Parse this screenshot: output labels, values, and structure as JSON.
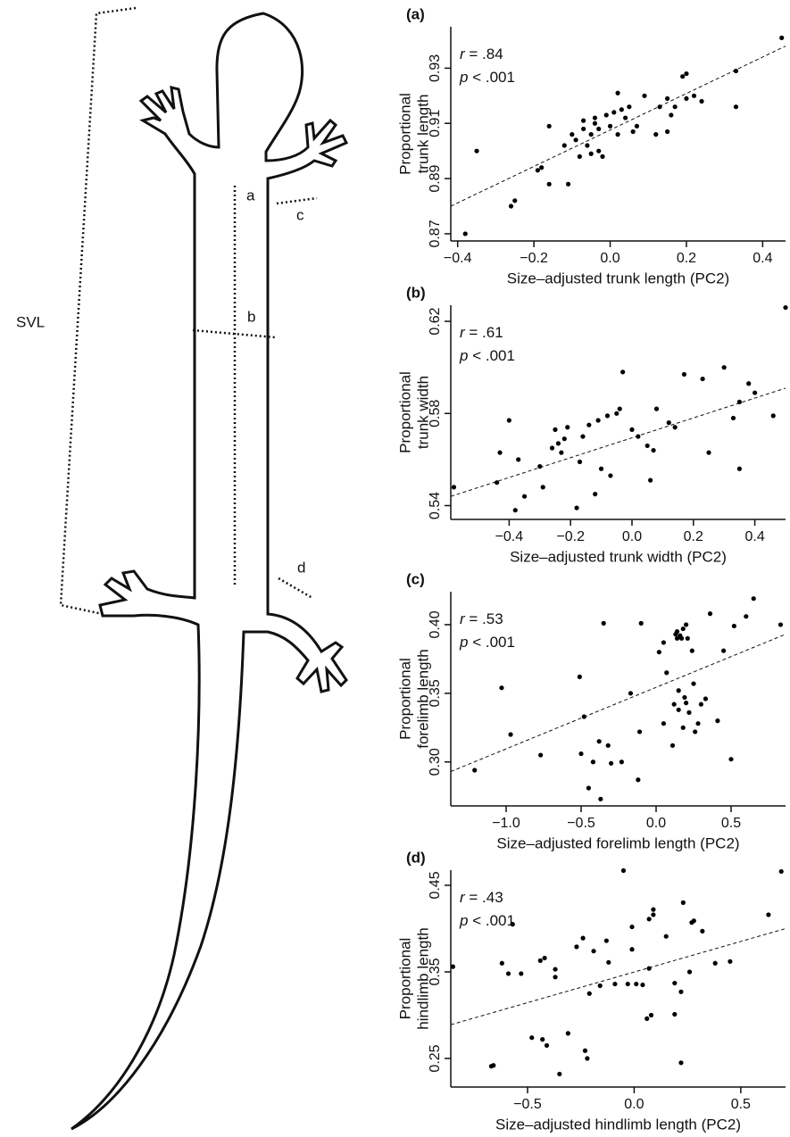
{
  "diagram": {
    "labels": {
      "svl": "SVL",
      "a": "a",
      "b": "b",
      "c": "c",
      "d": "d"
    }
  },
  "chart_data": [
    {
      "type": "scatter",
      "panel": "(a)",
      "annotations": [
        "r = .84",
        "p < .001"
      ],
      "x_label": "Size–adjusted trunk length (PC2)",
      "y_label": [
        "Proportional",
        "trunk length"
      ],
      "color": "#000000",
      "xlim": [
        -0.418,
        0.46
      ],
      "ylim": [
        0.8674,
        0.945
      ],
      "xticks": [
        {
          "value": -0.4,
          "label": "−0.4"
        },
        {
          "value": -0.2,
          "label": "−0.2"
        },
        {
          "value": 0,
          "label": "0.0"
        },
        0.2,
        0.4
      ],
      "yticks": [
        0.87,
        0.89,
        0.91,
        0.93
      ],
      "x": [
        -0.38,
        -0.35,
        -0.26,
        -0.25,
        -0.19,
        -0.18,
        -0.16,
        -0.16,
        -0.12,
        -0.11,
        -0.1,
        -0.09,
        -0.08,
        -0.07,
        -0.07,
        -0.06,
        -0.05,
        -0.05,
        -0.04,
        -0.04,
        -0.03,
        -0.03,
        -0.02,
        -0.01,
        0.0,
        0.01,
        0.02,
        0.02,
        0.03,
        0.04,
        0.05,
        0.06,
        0.07,
        0.09,
        0.13,
        0.15,
        0.15,
        0.16,
        0.17,
        0.19,
        0.2,
        0.2,
        0.22,
        0.24,
        0.33,
        0.33,
        0.45,
        0.12
      ],
      "values": [
        0.87,
        0.9,
        0.88,
        0.882,
        0.893,
        0.894,
        0.888,
        0.909,
        0.902,
        0.888,
        0.906,
        0.904,
        0.898,
        0.911,
        0.908,
        0.902,
        0.906,
        0.899,
        0.91,
        0.912,
        0.908,
        0.9,
        0.898,
        0.913,
        0.909,
        0.914,
        0.921,
        0.906,
        0.915,
        0.912,
        0.916,
        0.907,
        0.909,
        0.92,
        0.916,
        0.919,
        0.907,
        0.913,
        0.916,
        0.927,
        0.928,
        0.919,
        0.92,
        0.918,
        0.929,
        0.916,
        0.941,
        0.906
      ],
      "trend_line": {
        "x": [
          -0.418,
          0.46
        ],
        "values": [
          0.88,
          0.938
        ]
      }
    },
    {
      "type": "scatter",
      "panel": "(b)",
      "annotations": [
        "r = .61",
        "p < .001"
      ],
      "x_label": "Size–adjusted trunk width (PC2)",
      "y_label": [
        "Proportional",
        "trunk width"
      ],
      "color": "#000000",
      "xlim": [
        -0.59,
        0.5
      ],
      "ylim": [
        0.534,
        0.627
      ],
      "xticks": [
        {
          "value": -0.4,
          "label": "−0.4"
        },
        {
          "value": -0.2,
          "label": "−0.2"
        },
        {
          "value": 0,
          "label": "0.0"
        },
        0.2,
        0.4
      ],
      "yticks": [
        0.54,
        0.58,
        0.62
      ],
      "x": [
        -0.58,
        -0.44,
        -0.43,
        -0.4,
        -0.38,
        -0.37,
        -0.35,
        -0.3,
        -0.29,
        -0.26,
        -0.25,
        -0.24,
        -0.23,
        -0.22,
        -0.21,
        -0.18,
        -0.17,
        -0.16,
        -0.14,
        -0.12,
        -0.11,
        -0.1,
        -0.08,
        -0.07,
        -0.05,
        -0.04,
        -0.03,
        0.0,
        0.02,
        0.05,
        0.06,
        0.07,
        0.08,
        0.12,
        0.14,
        0.17,
        0.23,
        0.25,
        0.3,
        0.33,
        0.35,
        0.35,
        0.38,
        0.4,
        0.46,
        0.5
      ],
      "values": [
        0.548,
        0.55,
        0.563,
        0.577,
        0.538,
        0.56,
        0.544,
        0.557,
        0.548,
        0.565,
        0.573,
        0.567,
        0.563,
        0.569,
        0.574,
        0.539,
        0.559,
        0.57,
        0.575,
        0.545,
        0.577,
        0.556,
        0.579,
        0.553,
        0.58,
        0.582,
        0.598,
        0.573,
        0.57,
        0.566,
        0.551,
        0.564,
        0.582,
        0.576,
        0.574,
        0.597,
        0.595,
        0.563,
        0.6,
        0.578,
        0.585,
        0.556,
        0.593,
        0.589,
        0.579,
        0.626
      ],
      "trend_line": {
        "x": [
          -0.59,
          0.5
        ],
        "values": [
          0.544,
          0.591
        ]
      }
    },
    {
      "type": "scatter",
      "panel": "(c)",
      "annotations": [
        "r = .53",
        "p < .001"
      ],
      "x_label": "Size–adjusted forelimb length (PC2)",
      "y_label": [
        "Proportional",
        "forelimb length"
      ],
      "color": "#000000",
      "xlim": [
        -1.369,
        0.863
      ],
      "ylim": [
        0.268,
        0.424
      ],
      "xticks": [
        {
          "value": -1,
          "label": "−1.0"
        },
        {
          "value": -0.5,
          "label": "−0.5"
        },
        {
          "value": 0,
          "label": "0.0"
        },
        0.5
      ],
      "yticks": [
        {
          "value": 0.3,
          "label": "0.30"
        },
        0.35,
        {
          "value": 0.4,
          "label": "0.40"
        }
      ],
      "x": [
        -1.21,
        -1.03,
        -0.97,
        -0.77,
        -0.51,
        -0.5,
        -0.48,
        -0.45,
        -0.42,
        -0.38,
        -0.37,
        -0.35,
        -0.32,
        -0.3,
        -0.23,
        -0.17,
        -0.12,
        -0.11,
        -0.1,
        0.02,
        0.05,
        0.05,
        0.07,
        0.13,
        0.14,
        0.14,
        0.15,
        0.16,
        0.17,
        0.18,
        0.19,
        0.2,
        0.2,
        0.21,
        0.22,
        0.24,
        0.25,
        0.26,
        0.28,
        0.3,
        0.33,
        0.36,
        0.41,
        0.45,
        0.5,
        0.52,
        0.6,
        0.65,
        0.83,
        0.18,
        0.15,
        0.12,
        0.11
      ],
      "values": [
        0.294,
        0.354,
        0.32,
        0.305,
        0.362,
        0.306,
        0.333,
        0.281,
        0.3,
        0.315,
        0.273,
        0.401,
        0.312,
        0.299,
        0.3,
        0.35,
        0.287,
        0.322,
        0.401,
        0.38,
        0.387,
        0.328,
        0.365,
        0.393,
        0.39,
        0.395,
        0.352,
        0.392,
        0.39,
        0.397,
        0.347,
        0.343,
        0.4,
        0.39,
        0.336,
        0.381,
        0.357,
        0.322,
        0.328,
        0.342,
        0.346,
        0.408,
        0.33,
        0.381,
        0.302,
        0.399,
        0.406,
        0.419,
        0.4,
        0.325,
        0.338,
        0.342,
        0.312
      ],
      "trend_line": {
        "x": [
          -1.369,
          0.863
        ],
        "values": [
          0.293,
          0.393
        ]
      }
    },
    {
      "type": "scatter",
      "panel": "(d)",
      "annotations": [
        "r = .43",
        "p < .001"
      ],
      "x_label": "Size–adjusted hindlimb length (PC2)",
      "y_label": [
        "Proportional",
        "hindlimb length"
      ],
      "color": "#000000",
      "xlim": [
        -0.86,
        0.71
      ],
      "ylim": [
        0.217,
        0.4675
      ],
      "xticks": [
        {
          "value": -0.5,
          "label": "−0.5"
        },
        {
          "value": 0,
          "label": "0.0"
        },
        0.5
      ],
      "yticks": [
        0.25,
        0.35,
        0.45
      ],
      "x": [
        -0.85,
        -0.67,
        -0.66,
        -0.62,
        -0.59,
        -0.57,
        -0.53,
        -0.48,
        -0.44,
        -0.43,
        -0.42,
        -0.41,
        -0.37,
        -0.37,
        -0.35,
        -0.31,
        -0.27,
        -0.24,
        -0.23,
        -0.22,
        -0.21,
        -0.19,
        -0.16,
        -0.13,
        -0.12,
        -0.09,
        -0.05,
        -0.03,
        -0.01,
        -0.01,
        0.01,
        0.04,
        0.06,
        0.07,
        0.07,
        0.08,
        0.09,
        0.09,
        0.15,
        0.19,
        0.22,
        0.22,
        0.23,
        0.26,
        0.27,
        0.28,
        0.32,
        0.38,
        0.45,
        0.63,
        0.69,
        0.19
      ],
      "values": [
        0.356,
        0.241,
        0.242,
        0.36,
        0.348,
        0.405,
        0.348,
        0.274,
        0.363,
        0.272,
        0.366,
        0.265,
        0.353,
        0.344,
        0.232,
        0.279,
        0.379,
        0.389,
        0.259,
        0.25,
        0.325,
        0.374,
        0.334,
        0.386,
        0.361,
        0.336,
        0.467,
        0.336,
        0.376,
        0.402,
        0.336,
        0.335,
        0.296,
        0.354,
        0.411,
        0.3,
        0.416,
        0.422,
        0.391,
        0.301,
        0.245,
        0.327,
        0.43,
        0.35,
        0.407,
        0.409,
        0.397,
        0.36,
        0.362,
        0.416,
        0.466,
        0.337
      ],
      "trend_line": {
        "x": [
          -0.86,
          0.71
        ],
        "values": [
          0.289,
          0.4
        ]
      }
    }
  ]
}
